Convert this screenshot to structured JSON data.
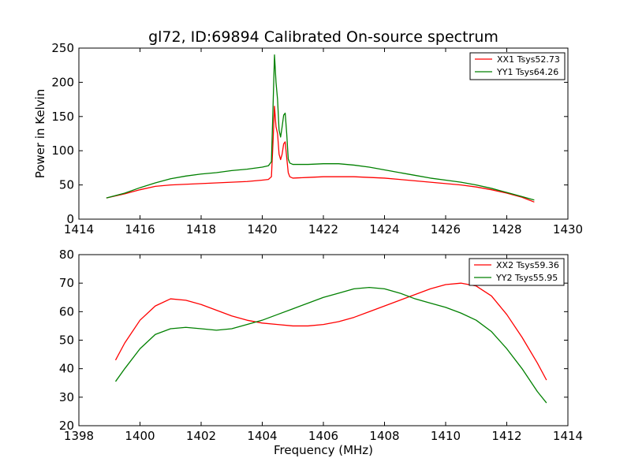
{
  "figure": {
    "title": "gl72, ID:69894 Calibrated On-source spectrum"
  },
  "chart_data": [
    {
      "type": "line",
      "title": "gl72, ID:69894 Calibrated On-source spectrum",
      "xlabel": "",
      "ylabel": "Power in Kelvin",
      "xlim": [
        1414,
        1430
      ],
      "ylim": [
        0,
        250
      ],
      "xticks": [
        1414,
        1416,
        1418,
        1420,
        1422,
        1424,
        1426,
        1428,
        1430
      ],
      "yticks": [
        0,
        50,
        100,
        150,
        200,
        250
      ],
      "legend": "top-right",
      "series": [
        {
          "name": "XX1 Tsys52.73",
          "color": "#ff0000",
          "x": [
            1414.9,
            1415.5,
            1416.0,
            1416.5,
            1417.0,
            1417.5,
            1418.0,
            1418.5,
            1419.0,
            1419.5,
            1420.0,
            1420.2,
            1420.3,
            1420.35,
            1420.4,
            1420.45,
            1420.5,
            1420.55,
            1420.6,
            1420.65,
            1420.7,
            1420.75,
            1420.8,
            1420.85,
            1420.9,
            1421.0,
            1421.5,
            1422.0,
            1422.5,
            1423.0,
            1423.5,
            1424.0,
            1424.5,
            1425.0,
            1425.5,
            1426.0,
            1426.5,
            1427.0,
            1427.5,
            1428.0,
            1428.5,
            1428.9
          ],
          "y": [
            31,
            37,
            43,
            48,
            50,
            51,
            52,
            53,
            54,
            55,
            57,
            58,
            62,
            110,
            165,
            135,
            125,
            95,
            87,
            95,
            110,
            113,
            90,
            68,
            62,
            60,
            61,
            62,
            62,
            62,
            61,
            60,
            58,
            56,
            54,
            52,
            50,
            47,
            43,
            38,
            32,
            25
          ]
        },
        {
          "name": "YY1 Tsys64.26",
          "color": "#008000",
          "x": [
            1414.9,
            1415.5,
            1416.0,
            1416.5,
            1417.0,
            1417.5,
            1418.0,
            1418.5,
            1419.0,
            1419.5,
            1420.0,
            1420.2,
            1420.3,
            1420.35,
            1420.4,
            1420.45,
            1420.5,
            1420.55,
            1420.6,
            1420.65,
            1420.7,
            1420.75,
            1420.8,
            1420.85,
            1420.9,
            1421.0,
            1421.5,
            1422.0,
            1422.5,
            1423.0,
            1423.5,
            1424.0,
            1424.5,
            1425.0,
            1425.5,
            1426.0,
            1426.5,
            1427.0,
            1427.5,
            1428.0,
            1428.5,
            1428.9
          ],
          "y": [
            31,
            38,
            46,
            53,
            59,
            63,
            66,
            68,
            71,
            73,
            76,
            78,
            84,
            160,
            240,
            200,
            175,
            130,
            120,
            135,
            152,
            155,
            125,
            88,
            82,
            80,
            80,
            81,
            81,
            79,
            76,
            72,
            68,
            64,
            60,
            57,
            54,
            50,
            45,
            39,
            33,
            28
          ]
        }
      ]
    },
    {
      "type": "line",
      "title": "",
      "xlabel": "Frequency (MHz)",
      "ylabel": "",
      "xlim": [
        1398,
        1414
      ],
      "ylim": [
        20,
        80
      ],
      "xticks": [
        1398,
        1400,
        1402,
        1404,
        1406,
        1408,
        1410,
        1412,
        1414
      ],
      "yticks": [
        20,
        30,
        40,
        50,
        60,
        70,
        80
      ],
      "legend": "top-right",
      "series": [
        {
          "name": "XX2 Tsys59.36",
          "color": "#ff0000",
          "x": [
            1399.2,
            1399.5,
            1400.0,
            1400.5,
            1401.0,
            1401.5,
            1402.0,
            1402.5,
            1403.0,
            1403.5,
            1404.0,
            1404.5,
            1405.0,
            1405.5,
            1406.0,
            1406.5,
            1407.0,
            1407.5,
            1408.0,
            1408.5,
            1409.0,
            1409.5,
            1410.0,
            1410.5,
            1411.0,
            1411.5,
            1412.0,
            1412.5,
            1413.0,
            1413.3
          ],
          "y": [
            43,
            49,
            57,
            62,
            64.5,
            64,
            62.5,
            60.5,
            58.5,
            57,
            56,
            55.5,
            55,
            55,
            55.5,
            56.5,
            58,
            60,
            62,
            64,
            66,
            68,
            69.5,
            70,
            69,
            65.5,
            59,
            51,
            42,
            36
          ]
        },
        {
          "name": "YY2 Tsys55.95",
          "color": "#008000",
          "x": [
            1399.2,
            1399.5,
            1400.0,
            1400.5,
            1401.0,
            1401.5,
            1402.0,
            1402.5,
            1403.0,
            1403.5,
            1404.0,
            1404.5,
            1405.0,
            1405.5,
            1406.0,
            1406.5,
            1407.0,
            1407.5,
            1408.0,
            1408.5,
            1409.0,
            1409.5,
            1410.0,
            1410.5,
            1411.0,
            1411.5,
            1412.0,
            1412.5,
            1413.0,
            1413.3
          ],
          "y": [
            35.5,
            40,
            47,
            52,
            54,
            54.5,
            54,
            53.5,
            54,
            55.5,
            57,
            59,
            61,
            63,
            65,
            66.5,
            68,
            68.5,
            68,
            66.5,
            64.5,
            63,
            61.5,
            59.5,
            57,
            53,
            47,
            40,
            32,
            28
          ]
        }
      ]
    }
  ]
}
